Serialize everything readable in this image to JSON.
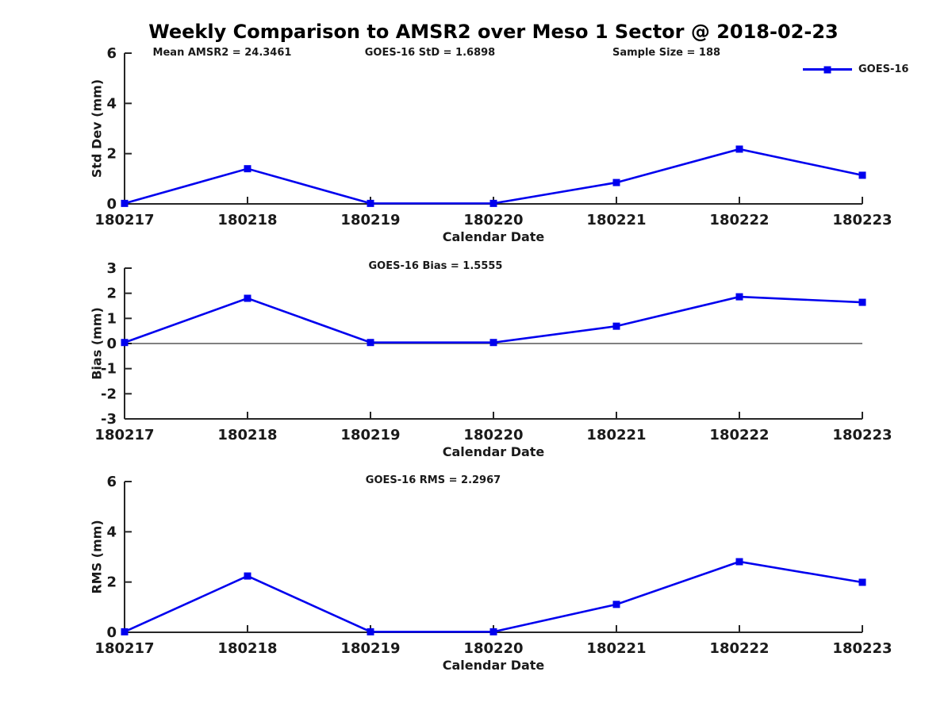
{
  "figure": {
    "title": "Weekly Comparison to AMSR2 over Meso 1 Sector @ 2018-02-23",
    "legend": {
      "label": "GOES-16",
      "marker": "square",
      "color": "#0000EE",
      "position": "top-right"
    }
  },
  "chart_data": [
    {
      "id": "stddev",
      "type": "line",
      "annotations": [
        "Mean AMSR2 = 24.3461",
        "GOES-16 StD = 1.6898",
        "Sample Size = 188"
      ],
      "ylabel": "Std Dev (mm)",
      "xlabel": "Calendar Date",
      "ylim": [
        0,
        6
      ],
      "yticks": [
        0,
        2,
        4,
        6
      ],
      "grid": false,
      "zero_line": false,
      "categories": [
        "180217",
        "180218",
        "180219",
        "180220",
        "180221",
        "180222",
        "180223"
      ],
      "series": [
        {
          "name": "GOES-16",
          "color": "#0000EE",
          "values": [
            0.02,
            1.4,
            0.02,
            0.02,
            0.85,
            2.18,
            1.14
          ]
        }
      ]
    },
    {
      "id": "bias",
      "type": "line",
      "annotations": [
        "GOES-16 Bias  = 1.5555"
      ],
      "ylabel": "Bias (mm)",
      "xlabel": "Calendar Date",
      "ylim": [
        -3,
        3
      ],
      "yticks": [
        -3,
        -2,
        -1,
        0,
        1,
        2,
        3
      ],
      "grid": false,
      "zero_line": true,
      "categories": [
        "180217",
        "180218",
        "180219",
        "180220",
        "180221",
        "180222",
        "180223"
      ],
      "series": [
        {
          "name": "GOES-16",
          "color": "#0000EE",
          "values": [
            0.04,
            1.8,
            0.04,
            0.04,
            0.69,
            1.86,
            1.64
          ]
        }
      ]
    },
    {
      "id": "rms",
      "type": "line",
      "annotations": [
        "GOES-16 RMS = 2.2967"
      ],
      "ylabel": "RMS (mm)",
      "xlabel": "Calendar Date",
      "ylim": [
        0,
        6
      ],
      "yticks": [
        0,
        2,
        4,
        6
      ],
      "grid": false,
      "zero_line": false,
      "categories": [
        "180217",
        "180218",
        "180219",
        "180220",
        "180221",
        "180222",
        "180223"
      ],
      "series": [
        {
          "name": "GOES-16",
          "color": "#0000EE",
          "values": [
            0.02,
            2.24,
            0.02,
            0.02,
            1.11,
            2.81,
            1.99
          ]
        }
      ]
    }
  ]
}
